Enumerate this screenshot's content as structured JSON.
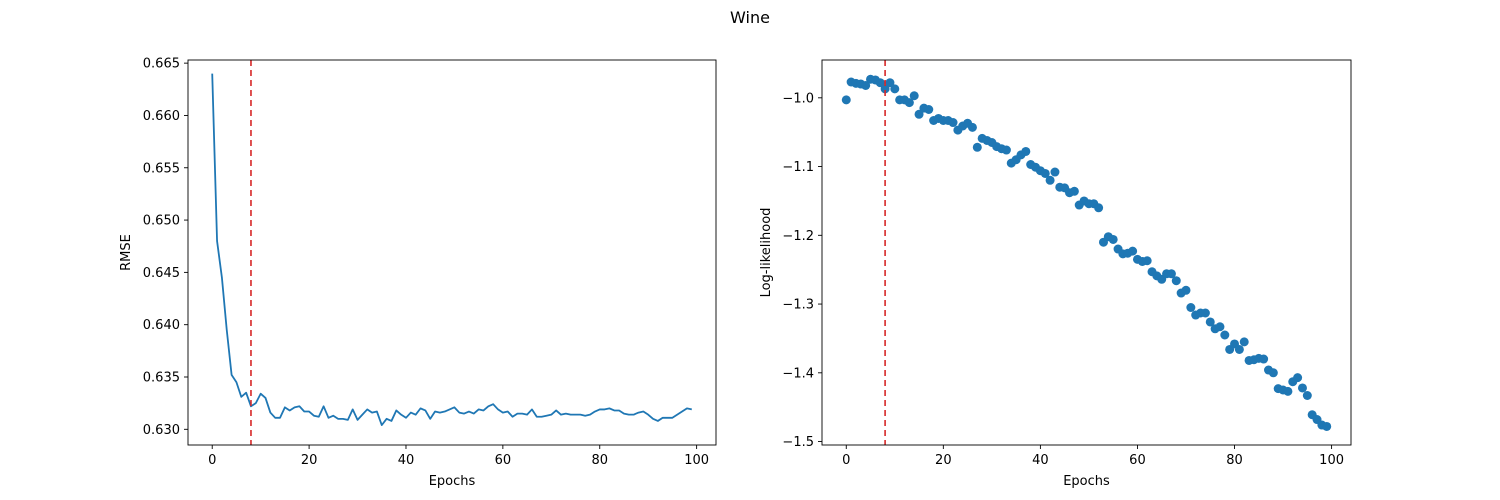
{
  "figure": {
    "suptitle": "Wine"
  },
  "chart_data": [
    {
      "type": "line",
      "title": "",
      "xlabel": "Epochs",
      "ylabel": "RMSE",
      "xlim": [
        -5,
        104
      ],
      "ylim": [
        0.6285,
        0.6653
      ],
      "xticks": [
        0,
        20,
        40,
        60,
        80,
        100
      ],
      "yticks": [
        0.63,
        0.635,
        0.64,
        0.645,
        0.65,
        0.655,
        0.66,
        0.665
      ],
      "ytick_labels": [
        "0.630",
        "0.635",
        "0.640",
        "0.645",
        "0.650",
        "0.655",
        "0.660",
        "0.665"
      ],
      "vline_x": 8,
      "colors": {
        "series": "#1f77b4",
        "vline": "#d62728"
      },
      "series": [
        {
          "x": [
            0,
            1,
            2,
            3,
            4,
            5,
            6,
            7,
            8,
            9,
            10,
            11,
            12,
            13,
            14,
            15,
            16,
            17,
            18,
            19,
            20,
            21,
            22,
            23,
            24,
            25,
            26,
            27,
            28,
            29,
            30,
            31,
            32,
            33,
            34,
            35,
            36,
            37,
            38,
            39,
            40,
            41,
            42,
            43,
            44,
            45,
            46,
            47,
            48,
            49,
            50,
            51,
            52,
            53,
            54,
            55,
            56,
            57,
            58,
            59,
            60,
            61,
            62,
            63,
            64,
            65,
            66,
            67,
            68,
            69,
            70,
            71,
            72,
            73,
            74,
            75,
            76,
            77,
            78,
            79,
            80,
            81,
            82,
            83,
            84,
            85,
            86,
            87,
            88,
            89,
            90,
            91,
            92,
            93,
            94,
            95,
            96,
            97,
            98,
            99
          ],
          "values": [
            0.664,
            0.648,
            0.6445,
            0.6395,
            0.6352,
            0.6345,
            0.6331,
            0.6335,
            0.6322,
            0.6325,
            0.6334,
            0.633,
            0.6316,
            0.6311,
            0.6311,
            0.6321,
            0.6318,
            0.6321,
            0.6322,
            0.6317,
            0.6317,
            0.6313,
            0.6312,
            0.6322,
            0.6311,
            0.6313,
            0.631,
            0.631,
            0.6309,
            0.6319,
            0.6309,
            0.6314,
            0.6319,
            0.6316,
            0.6317,
            0.6304,
            0.631,
            0.6308,
            0.6318,
            0.6314,
            0.6311,
            0.6316,
            0.6314,
            0.632,
            0.6318,
            0.631,
            0.6317,
            0.6316,
            0.6317,
            0.6319,
            0.6321,
            0.6316,
            0.6315,
            0.6317,
            0.6315,
            0.6319,
            0.6318,
            0.6322,
            0.6324,
            0.6319,
            0.6316,
            0.6317,
            0.6312,
            0.6315,
            0.6315,
            0.6314,
            0.6319,
            0.6312,
            0.6312,
            0.6313,
            0.6314,
            0.6318,
            0.6314,
            0.6315,
            0.6314,
            0.6314,
            0.6314,
            0.6313,
            0.6314,
            0.6317,
            0.6319,
            0.6319,
            0.632,
            0.6318,
            0.6318,
            0.6315,
            0.6314,
            0.6314,
            0.6316,
            0.6317,
            0.6314,
            0.631,
            0.6308,
            0.6311,
            0.6311,
            0.6311,
            0.6314,
            0.6317,
            0.632,
            0.6319
          ]
        }
      ]
    },
    {
      "type": "scatter",
      "title": "",
      "xlabel": "Epochs",
      "ylabel": "Log-likelihood",
      "xlim": [
        -5,
        104
      ],
      "ylim": [
        -1.505,
        -0.945
      ],
      "xticks": [
        0,
        20,
        40,
        60,
        80,
        100
      ],
      "yticks": [
        -1.0,
        -1.1,
        -1.2,
        -1.3,
        -1.4,
        -1.5
      ],
      "ytick_labels": [
        "−1.0",
        "−1.1",
        "−1.2",
        "−1.3",
        "−1.4",
        "−1.5"
      ],
      "vline_x": 8,
      "colors": {
        "series": "#1f77b4",
        "vline": "#d62728"
      },
      "series": [
        {
          "x": [
            0,
            1,
            2,
            3,
            4,
            5,
            6,
            7,
            8,
            9,
            10,
            11,
            12,
            13,
            14,
            15,
            16,
            17,
            18,
            19,
            20,
            21,
            22,
            23,
            24,
            25,
            26,
            27,
            28,
            29,
            30,
            31,
            32,
            33,
            34,
            35,
            36,
            37,
            38,
            39,
            40,
            41,
            42,
            43,
            44,
            45,
            46,
            47,
            48,
            49,
            50,
            51,
            52,
            53,
            54,
            55,
            56,
            57,
            58,
            59,
            60,
            61,
            62,
            63,
            64,
            65,
            66,
            67,
            68,
            69,
            70,
            71,
            72,
            73,
            74,
            75,
            76,
            77,
            78,
            79,
            80,
            81,
            82,
            83,
            84,
            85,
            86,
            87,
            88,
            89,
            90,
            91,
            92,
            93,
            94,
            95,
            96,
            97,
            98,
            99
          ],
          "values": [
            -1.003,
            -0.977,
            -0.979,
            -0.98,
            -0.982,
            -0.973,
            -0.974,
            -0.978,
            -0.987,
            -0.978,
            -0.987,
            -1.003,
            -1.003,
            -1.007,
            -0.997,
            -1.024,
            -1.015,
            -1.017,
            -1.033,
            -1.03,
            -1.033,
            -1.033,
            -1.036,
            -1.047,
            -1.041,
            -1.037,
            -1.043,
            -1.072,
            -1.059,
            -1.062,
            -1.065,
            -1.071,
            -1.074,
            -1.076,
            -1.095,
            -1.09,
            -1.083,
            -1.078,
            -1.097,
            -1.101,
            -1.106,
            -1.11,
            -1.12,
            -1.108,
            -1.13,
            -1.131,
            -1.138,
            -1.136,
            -1.156,
            -1.15,
            -1.154,
            -1.154,
            -1.16,
            -1.21,
            -1.202,
            -1.206,
            -1.22,
            -1.227,
            -1.226,
            -1.223,
            -1.235,
            -1.238,
            -1.237,
            -1.253,
            -1.259,
            -1.264,
            -1.256,
            -1.256,
            -1.266,
            -1.284,
            -1.28,
            -1.305,
            -1.316,
            -1.313,
            -1.313,
            -1.326,
            -1.336,
            -1.333,
            -1.345,
            -1.366,
            -1.358,
            -1.366,
            -1.355,
            -1.382,
            -1.381,
            -1.379,
            -1.38,
            -1.396,
            -1.4,
            -1.423,
            -1.425,
            -1.427,
            -1.413,
            -1.407,
            -1.422,
            -1.433,
            -1.461,
            -1.468,
            -1.476,
            -1.478
          ]
        }
      ]
    }
  ]
}
